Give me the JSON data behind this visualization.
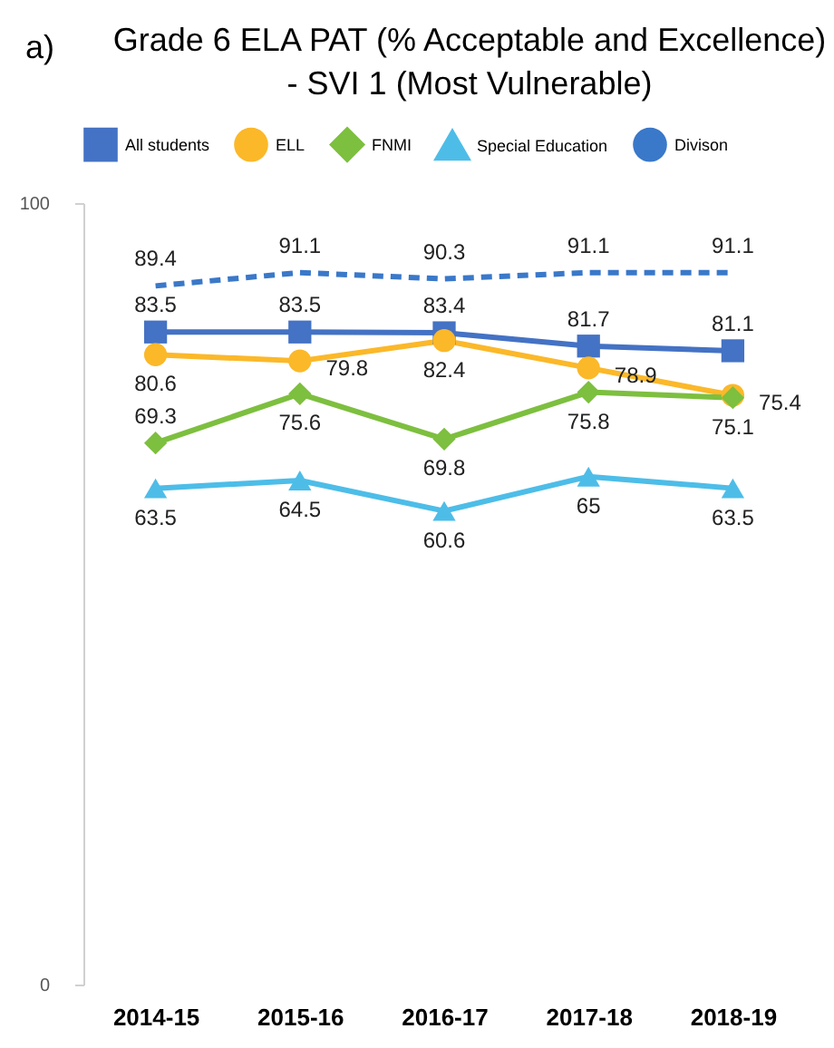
{
  "chart_data": {
    "type": "line",
    "title": "Grade 6 ELA PAT (% Acceptable and Excellence)\n- SVI 1 (Most Vulnerable)",
    "annotations": [
      "a)"
    ],
    "categories": [
      "2014-15",
      "2015-16",
      "2016-17",
      "2017-18",
      "2018-19"
    ],
    "series": [
      {
        "name": "All students",
        "color": "#4472c4",
        "values": [
          83.5,
          83.5,
          83.4,
          81.7,
          81.1
        ],
        "marker": "square",
        "line_style": "solid"
      },
      {
        "name": "ELL",
        "color": "#fbb829",
        "values": [
          80.6,
          79.8,
          82.4,
          78.9,
          75.4
        ],
        "marker": "circle",
        "line_style": "solid"
      },
      {
        "name": "FNMI",
        "color": "#7dbf3f",
        "values": [
          69.3,
          75.6,
          69.8,
          75.8,
          75.1
        ],
        "marker": "diamond",
        "line_style": "solid"
      },
      {
        "name": "Special Education",
        "color": "#4dbde8",
        "values": [
          63.5,
          64.5,
          60.6,
          65,
          63.5
        ],
        "marker": "triangle",
        "line_style": "solid"
      },
      {
        "name": "Divison",
        "color": "#3a78c9",
        "values": [
          89.4,
          91.1,
          90.3,
          91.1,
          91.1
        ],
        "marker": "none",
        "line_style": "dashed"
      }
    ],
    "ylim": [
      0,
      100
    ],
    "yticks": [
      0,
      100
    ],
    "grid": false,
    "legend": "top",
    "data_labels": true
  }
}
